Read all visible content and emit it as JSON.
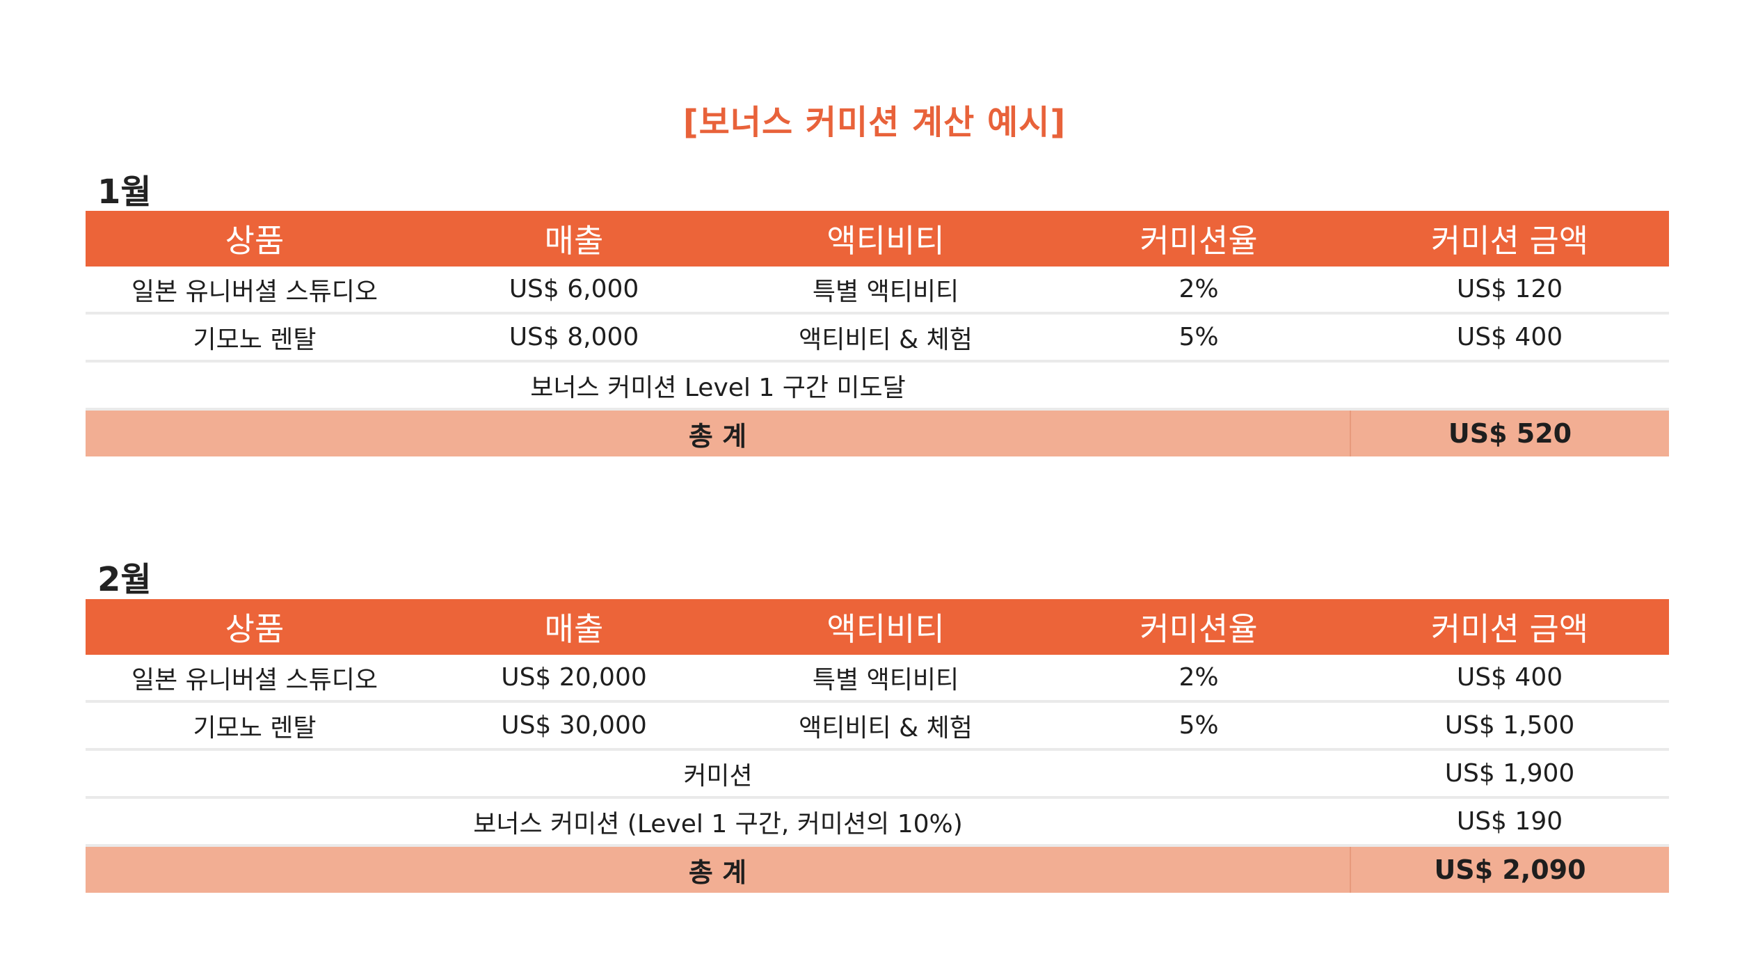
{
  "title": "[보너스 커미션 계산 예시]",
  "colors": {
    "accent": "#ec6439",
    "total_row": "#f2ae93",
    "title": "#e8623a"
  },
  "columns": [
    "상품",
    "매출",
    "액티비티",
    "커미션율",
    "커미션 금액"
  ],
  "january": {
    "label": "1월",
    "rows": [
      {
        "product": "일본 유니버셜 스튜디오",
        "sales": "US$ 6,000",
        "activity": "특별 액티비티",
        "rate": "2%",
        "amount": "US$ 120"
      },
      {
        "product": "기모노 렌탈",
        "sales": "US$ 8,000",
        "activity": "액티비티 & 체험",
        "rate": "5%",
        "amount": "US$ 400"
      }
    ],
    "note": "보너스 커미션 Level 1 구간 미도달",
    "total_label": "총 계",
    "total_amount": "US$ 520"
  },
  "february": {
    "label": "2월",
    "rows": [
      {
        "product": "일본 유니버셜 스튜디오",
        "sales": "US$ 20,000",
        "activity": "특별 액티비티",
        "rate": "2%",
        "amount": "US$ 400"
      },
      {
        "product": "기모노 렌탈",
        "sales": "US$ 30,000",
        "activity": "액티비티 & 체험",
        "rate": "5%",
        "amount": "US$ 1,500"
      }
    ],
    "commission_label": "커미션",
    "commission_amount": "US$ 1,900",
    "bonus_label": "보너스 커미션 (Level 1 구간, 커미션의 10%)",
    "bonus_amount": "US$ 190",
    "total_label": "총 계",
    "total_amount": "US$ 2,090"
  }
}
